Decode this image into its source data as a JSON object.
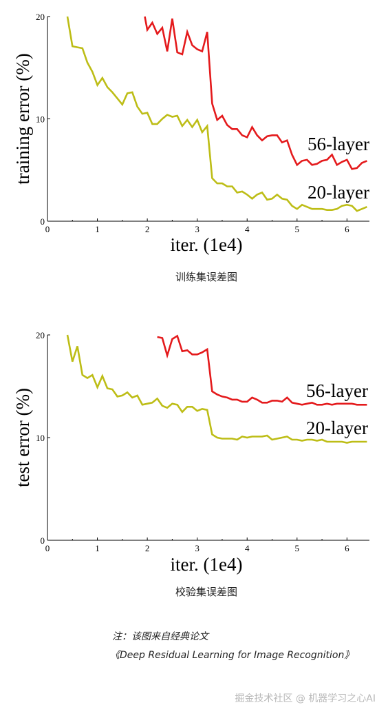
{
  "chart_data": [
    {
      "type": "line",
      "xlabel": "iter. (1e4)",
      "ylabel": "training error (%)",
      "xlim": [
        0,
        6.45
      ],
      "ylim": [
        0,
        20
      ],
      "xticks": [
        "0",
        "1",
        "2",
        "3",
        "4",
        "5",
        "6"
      ],
      "yticks": [
        "0",
        "10",
        "20"
      ],
      "grid": false,
      "series": [
        {
          "name": "56-layer",
          "color": "#e41a1c",
          "x": [
            1.95,
            2.0,
            2.1,
            2.2,
            2.3,
            2.4,
            2.5,
            2.6,
            2.7,
            2.8,
            2.9,
            3.0,
            3.1,
            3.2,
            3.3,
            3.4,
            3.5,
            3.6,
            3.7,
            3.8,
            3.9,
            4.0,
            4.1,
            4.2,
            4.3,
            4.4,
            4.5,
            4.6,
            4.7,
            4.8,
            4.9,
            5.0,
            5.1,
            5.2,
            5.3,
            5.4,
            5.5,
            5.6,
            5.7,
            5.8,
            5.9,
            6.0,
            6.1,
            6.2,
            6.3,
            6.4
          ],
          "y": [
            20.0,
            18.7,
            19.4,
            18.3,
            18.9,
            16.6,
            19.8,
            16.5,
            16.3,
            18.5,
            17.2,
            16.8,
            16.6,
            18.5,
            11.5,
            9.9,
            10.3,
            9.4,
            9.0,
            9.0,
            8.4,
            8.2,
            9.2,
            8.4,
            7.9,
            8.3,
            8.4,
            8.4,
            7.7,
            7.9,
            6.5,
            5.5,
            5.9,
            6.0,
            5.5,
            5.6,
            5.9,
            6.0,
            6.5,
            5.5,
            5.8,
            6.0,
            5.1,
            5.2,
            5.7,
            5.9
          ]
        },
        {
          "name": "20-layer",
          "color": "#bdbd16",
          "x": [
            0.4,
            0.5,
            0.6,
            0.7,
            0.8,
            0.9,
            1.0,
            1.1,
            1.2,
            1.3,
            1.4,
            1.5,
            1.6,
            1.7,
            1.8,
            1.9,
            2.0,
            2.1,
            2.2,
            2.3,
            2.4,
            2.5,
            2.6,
            2.7,
            2.8,
            2.9,
            3.0,
            3.1,
            3.2,
            3.3,
            3.4,
            3.5,
            3.6,
            3.7,
            3.8,
            3.9,
            4.0,
            4.1,
            4.2,
            4.3,
            4.4,
            4.5,
            4.6,
            4.7,
            4.8,
            4.9,
            5.0,
            5.1,
            5.2,
            5.3,
            5.4,
            5.5,
            5.6,
            5.7,
            5.8,
            5.9,
            6.0,
            6.1,
            6.2,
            6.3,
            6.4
          ],
          "y": [
            20.0,
            17.1,
            17.0,
            16.9,
            15.5,
            14.6,
            13.3,
            14.0,
            13.1,
            12.6,
            12.0,
            11.4,
            12.5,
            12.6,
            11.2,
            10.5,
            10.6,
            9.5,
            9.5,
            10.0,
            10.4,
            10.2,
            10.3,
            9.3,
            9.9,
            9.2,
            9.9,
            8.7,
            9.3,
            4.2,
            3.7,
            3.7,
            3.4,
            3.4,
            2.8,
            2.9,
            2.6,
            2.2,
            2.6,
            2.8,
            2.1,
            2.2,
            2.6,
            2.2,
            2.1,
            1.5,
            1.2,
            1.6,
            1.4,
            1.2,
            1.2,
            1.2,
            1.1,
            1.1,
            1.2,
            1.5,
            1.6,
            1.5,
            1.0,
            1.2,
            1.4
          ]
        }
      ]
    },
    {
      "type": "line",
      "xlabel": "iter. (1e4)",
      "ylabel": "test error (%)",
      "xlim": [
        0,
        6.45
      ],
      "ylim": [
        0,
        20
      ],
      "xticks": [
        "0",
        "1",
        "2",
        "3",
        "4",
        "5",
        "6"
      ],
      "yticks": [
        "0",
        "10",
        "20"
      ],
      "grid": false,
      "series": [
        {
          "name": "56-layer",
          "color": "#e41a1c",
          "x": [
            2.2,
            2.3,
            2.4,
            2.5,
            2.6,
            2.7,
            2.8,
            2.9,
            3.0,
            3.1,
            3.2,
            3.3,
            3.4,
            3.5,
            3.6,
            3.7,
            3.8,
            3.9,
            4.0,
            4.1,
            4.2,
            4.3,
            4.4,
            4.5,
            4.6,
            4.7,
            4.8,
            4.9,
            5.0,
            5.1,
            5.2,
            5.3,
            5.4,
            5.5,
            5.6,
            5.7,
            5.8,
            5.9,
            6.0,
            6.1,
            6.2,
            6.3,
            6.4
          ],
          "y": [
            19.8,
            19.7,
            18.0,
            19.6,
            19.9,
            18.4,
            18.5,
            18.1,
            18.1,
            18.3,
            18.6,
            14.5,
            14.2,
            14.0,
            13.9,
            13.7,
            13.7,
            13.5,
            13.5,
            13.9,
            13.7,
            13.4,
            13.4,
            13.6,
            13.6,
            13.5,
            13.9,
            13.4,
            13.3,
            13.2,
            13.3,
            13.4,
            13.2,
            13.2,
            13.3,
            13.2,
            13.3,
            13.3,
            13.3,
            13.3,
            13.2,
            13.2,
            13.2
          ]
        },
        {
          "name": "20-layer",
          "color": "#bdbd16",
          "x": [
            0.4,
            0.5,
            0.6,
            0.7,
            0.8,
            0.9,
            1.0,
            1.1,
            1.2,
            1.3,
            1.4,
            1.5,
            1.6,
            1.7,
            1.8,
            1.9,
            2.0,
            2.1,
            2.2,
            2.3,
            2.4,
            2.5,
            2.6,
            2.7,
            2.8,
            2.9,
            3.0,
            3.1,
            3.2,
            3.3,
            3.4,
            3.5,
            3.6,
            3.7,
            3.8,
            3.9,
            4.0,
            4.1,
            4.2,
            4.3,
            4.4,
            4.5,
            4.6,
            4.7,
            4.8,
            4.9,
            5.0,
            5.1,
            5.2,
            5.3,
            5.4,
            5.5,
            5.6,
            5.7,
            5.8,
            5.9,
            6.0,
            6.1,
            6.2,
            6.3,
            6.4
          ],
          "y": [
            20.0,
            17.4,
            18.9,
            16.1,
            15.8,
            16.1,
            14.9,
            16.0,
            14.8,
            14.7,
            14.0,
            14.1,
            14.4,
            13.9,
            14.1,
            13.2,
            13.3,
            13.4,
            13.8,
            13.1,
            12.9,
            13.3,
            13.2,
            12.5,
            13.0,
            13.0,
            12.6,
            12.8,
            12.7,
            10.3,
            10.0,
            9.9,
            9.9,
            9.9,
            9.8,
            10.1,
            10.0,
            10.1,
            10.1,
            10.1,
            10.2,
            9.8,
            9.9,
            10.0,
            10.1,
            9.8,
            9.8,
            9.7,
            9.8,
            9.8,
            9.7,
            9.8,
            9.6,
            9.6,
            9.6,
            9.6,
            9.5,
            9.6,
            9.6,
            9.6,
            9.6
          ]
        }
      ]
    }
  ],
  "captions": {
    "training": "训练集误差图",
    "test": "校验集误差图"
  },
  "note": {
    "line1": "注：该图来自经典论文",
    "line2": "《Deep Residual Learning for Image Recognition》"
  },
  "watermark": "掘金技术社区 @ 机器学习之心AI"
}
